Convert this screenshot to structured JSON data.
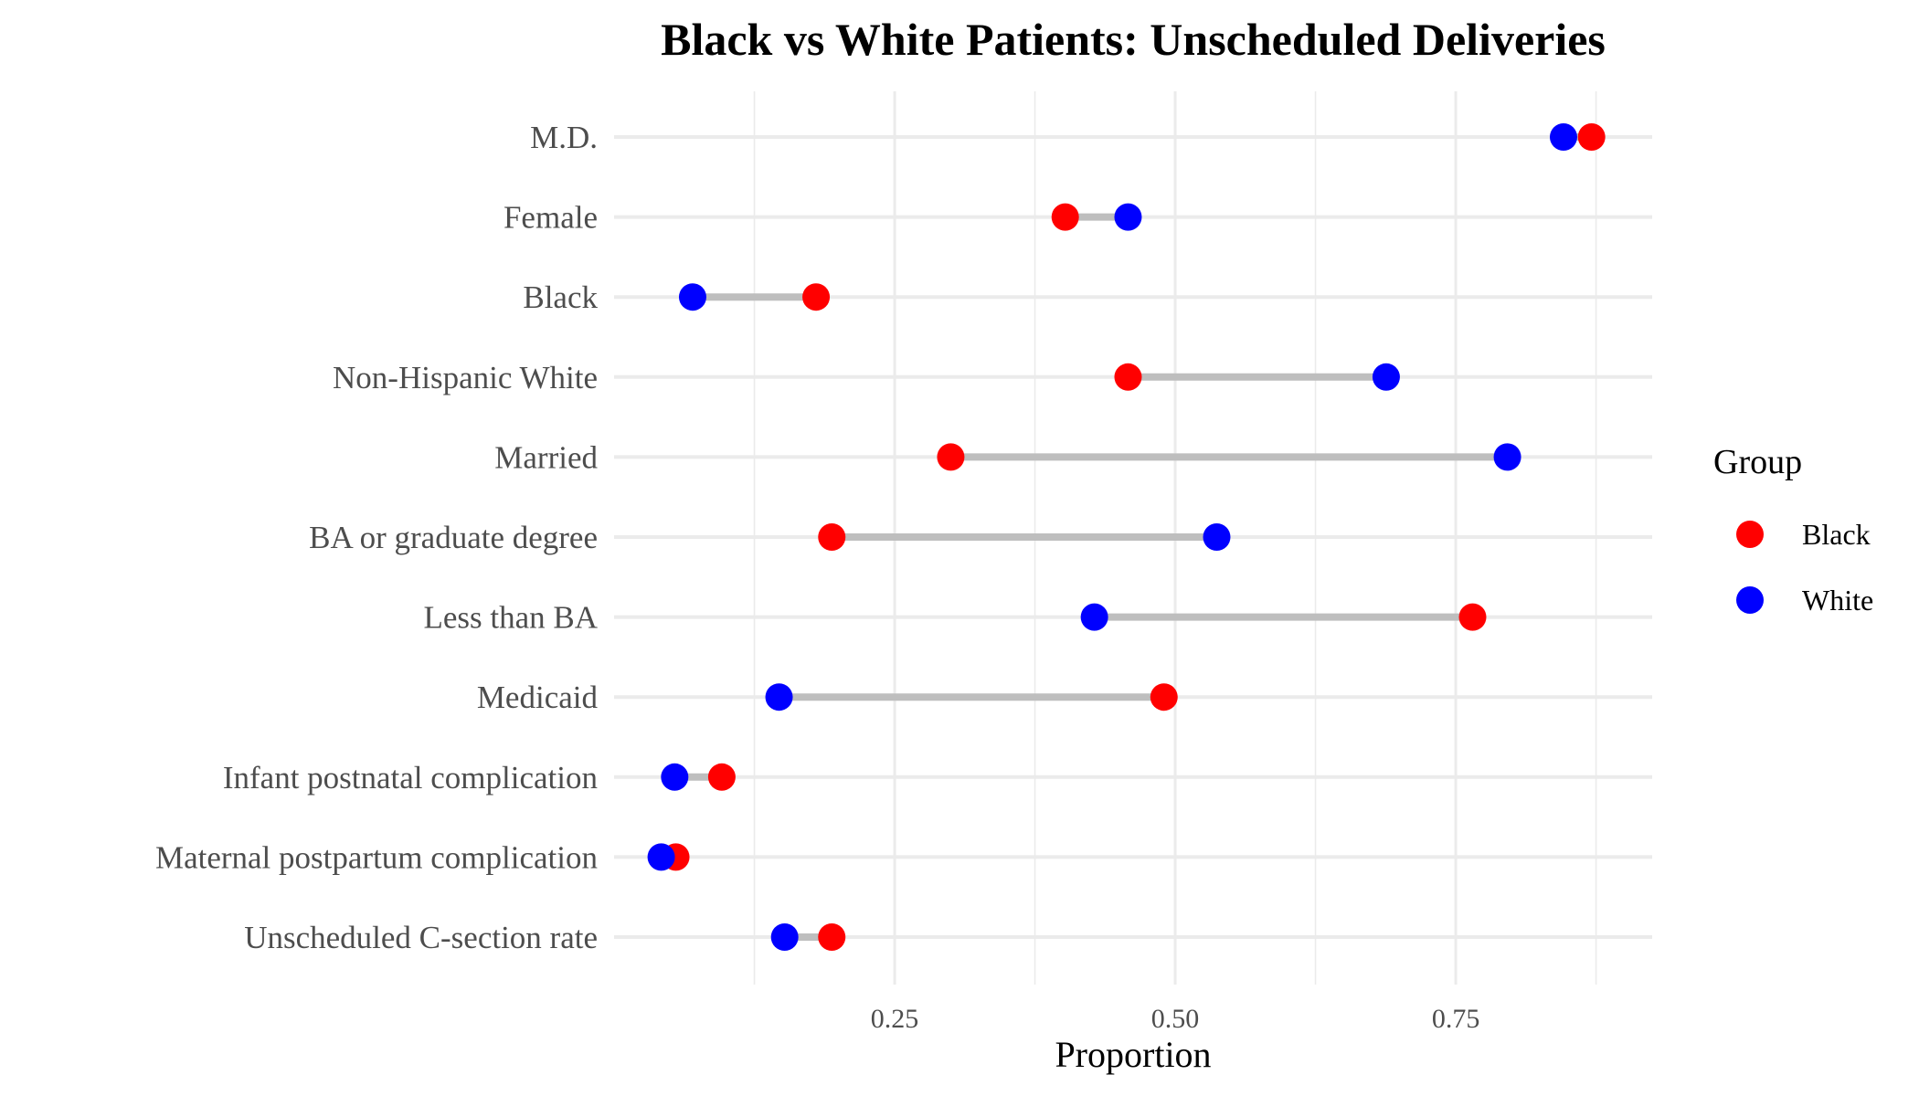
{
  "chart_data": {
    "type": "scatter",
    "subtype": "dumbbell",
    "title": "Black vs White Patients: Unscheduled Deliveries",
    "xlabel": "Proportion",
    "ylabel": "",
    "xlim": [
      0.0,
      0.925
    ],
    "xticks": [
      0.25,
      0.5,
      0.75
    ],
    "xtick_labels": [
      "0.25",
      "0.50",
      "0.75"
    ],
    "grid": true,
    "legend": {
      "title": "Group",
      "placement": "right"
    },
    "categories": [
      "M.D.",
      "Female",
      "Black",
      "Non-Hispanic White",
      "Married",
      "BA or graduate degree",
      "Less than BA",
      "Medicaid",
      "Infant postnatal complication",
      "Maternal postpartum complication",
      "Unscheduled C-section rate"
    ],
    "series": [
      {
        "name": "Black",
        "color": "#ff0000",
        "values": [
          0.871,
          0.402,
          0.18,
          0.458,
          0.3,
          0.194,
          0.765,
          0.49,
          0.096,
          0.055,
          0.194
        ]
      },
      {
        "name": "White",
        "color": "#0000ff",
        "values": [
          0.846,
          0.458,
          0.07,
          0.688,
          0.796,
          0.537,
          0.428,
          0.147,
          0.054,
          0.042,
          0.152
        ]
      }
    ],
    "connector_color": "#bebebe"
  }
}
